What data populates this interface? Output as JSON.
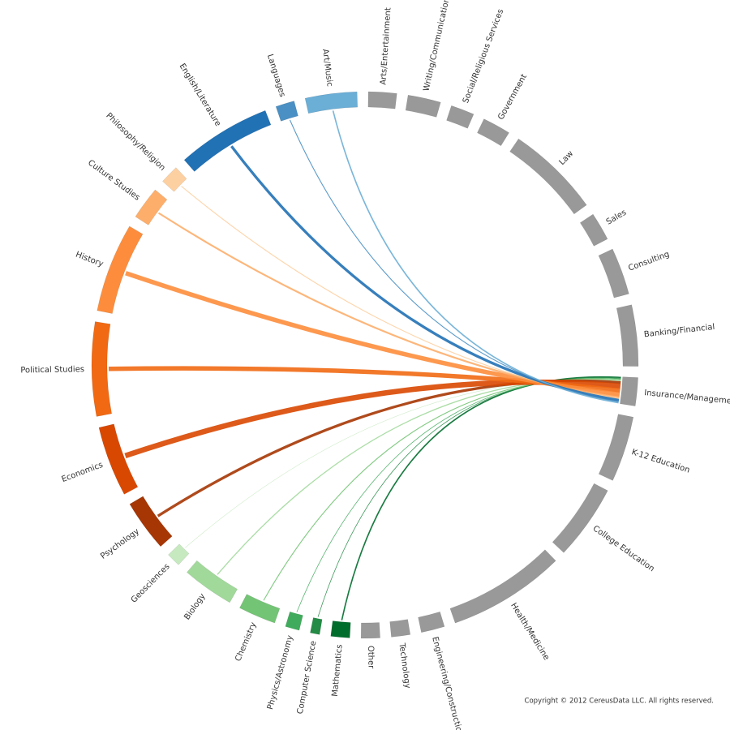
{
  "chart_data": {
    "type": "chord",
    "categories": [
      "K-12 Education",
      "College Education",
      "Health/Medicine",
      "Engineering/Construction",
      "Technology",
      "Other",
      "Mathematics",
      "Computer Science",
      "Physics/Astronomy",
      "Chemistry",
      "Biology",
      "Geosciences",
      "Psychology",
      "Economics",
      "Political Studies",
      "History",
      "Culture Studies",
      "Philosophy/Religion",
      "English/Literature",
      "Languages",
      "Art/Music",
      "Arts/Entertainment",
      "Writing/Communication",
      "Social/Religious Services",
      "Government",
      "Law",
      "Sales",
      "Consulting",
      "Banking/Financial",
      "Insurance/Management"
    ],
    "values": [
      14,
      16,
      25,
      5,
      4,
      4,
      4,
      2,
      3,
      8,
      11,
      3,
      11,
      15,
      20,
      19,
      7,
      4,
      20,
      4,
      11,
      6,
      7,
      5,
      6,
      20,
      6,
      10,
      13,
      6
    ],
    "colors": [
      "#999999",
      "#999999",
      "#999999",
      "#999999",
      "#999999",
      "#999999",
      "#006d2c",
      "#238b45",
      "#41ab5d",
      "#74c476",
      "#a1d99b",
      "#c7e9c0",
      "#a63603",
      "#d94801",
      "#f16913",
      "#fd8d3c",
      "#fdae6b",
      "#fdd0a2",
      "#2171b5",
      "#4a90c4",
      "#6baed6",
      "#999999",
      "#999999",
      "#999999",
      "#999999",
      "#999999",
      "#999999",
      "#999999",
      "#999999",
      "#999999"
    ],
    "flows": [
      null,
      null,
      null,
      null,
      null,
      null,
      1.5,
      0.7,
      0.7,
      1,
      1.2,
      0.5,
      3,
      6,
      5,
      5,
      2,
      1,
      3,
      1,
      1.5,
      null,
      null,
      null,
      null,
      null,
      null,
      null,
      null,
      null
    ],
    "target": 29,
    "copyright": "Copyright © 2012 CereusData LLC. All rights reserved."
  }
}
